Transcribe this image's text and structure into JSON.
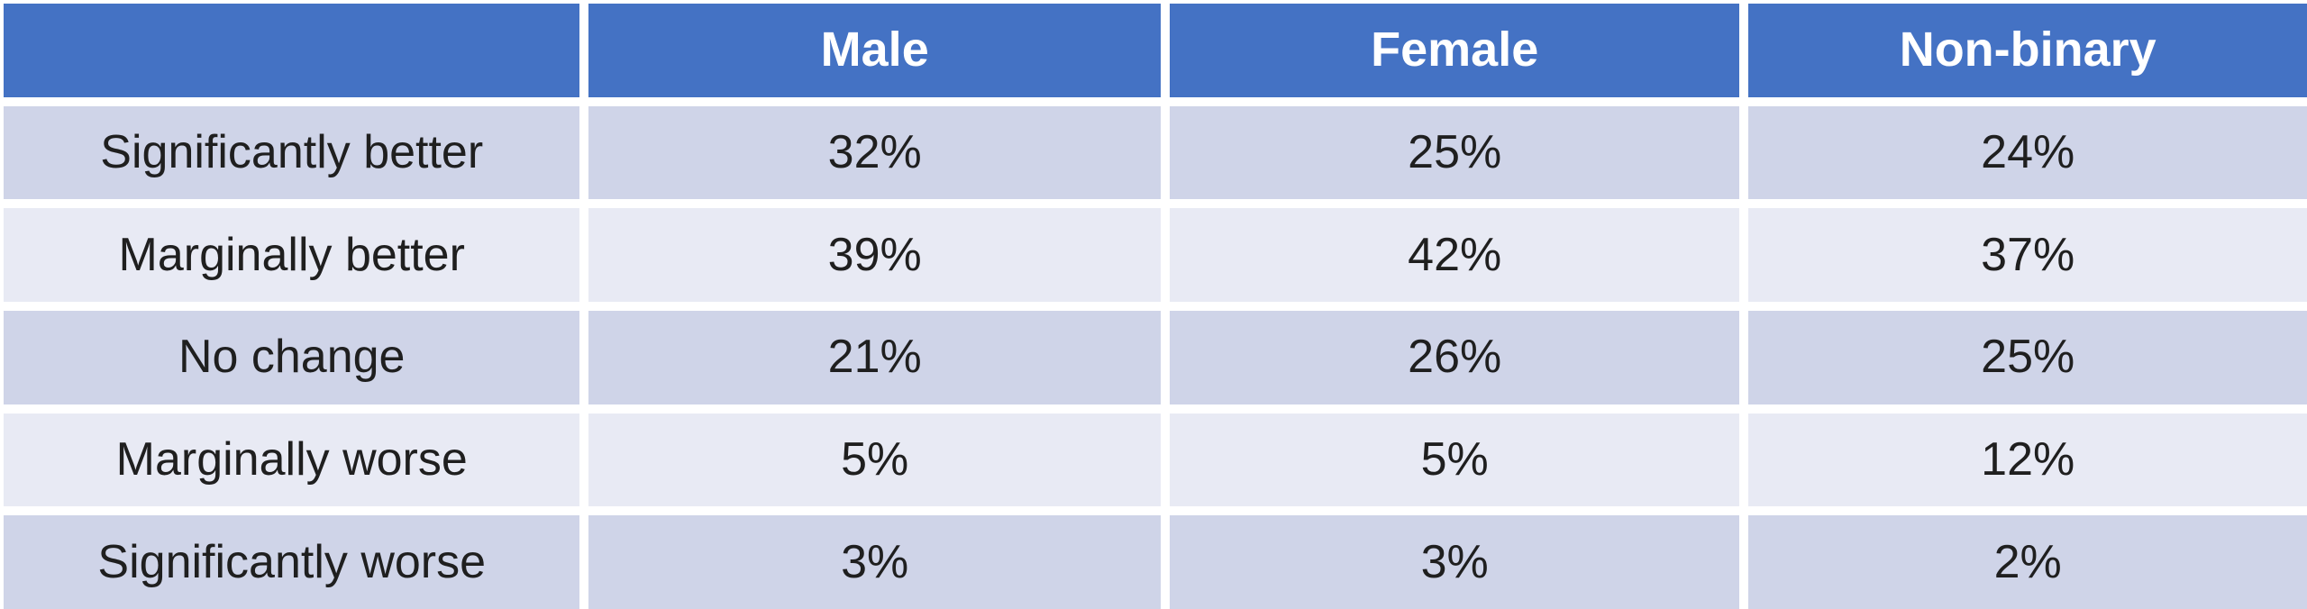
{
  "chart_data": {
    "type": "table",
    "title": "",
    "columns": [
      "",
      "Male",
      "Female",
      "Non-binary"
    ],
    "rows": [
      {
        "label": "Significantly better",
        "cells": [
          "32%",
          "25%",
          "24%"
        ]
      },
      {
        "label": "Marginally better",
        "cells": [
          "39%",
          "42%",
          "37%"
        ]
      },
      {
        "label": "No change",
        "cells": [
          "21%",
          "26%",
          "25%"
        ]
      },
      {
        "label": "Marginally worse",
        "cells": [
          "5%",
          "5%",
          "12%"
        ]
      },
      {
        "label": "Significantly worse",
        "cells": [
          "3%",
          "3%",
          "2%"
        ]
      }
    ],
    "series": [
      {
        "name": "Male",
        "values": [
          32,
          39,
          21,
          5,
          3
        ]
      },
      {
        "name": "Female",
        "values": [
          25,
          42,
          26,
          5,
          3
        ]
      },
      {
        "name": "Non-binary",
        "values": [
          24,
          37,
          25,
          12,
          2
        ]
      }
    ],
    "value_unit": "%",
    "layout": {
      "banded_rows": true,
      "gridlines": "white-gutters",
      "header_position": "top"
    },
    "colors": {
      "header_bg": "#4472C4",
      "band_dark": "#CFD4E8",
      "band_light": "#E8EAF4",
      "header_text": "#FFFFFF",
      "body_text": "#1F1F1F",
      "gap": "#FFFFFF"
    }
  }
}
